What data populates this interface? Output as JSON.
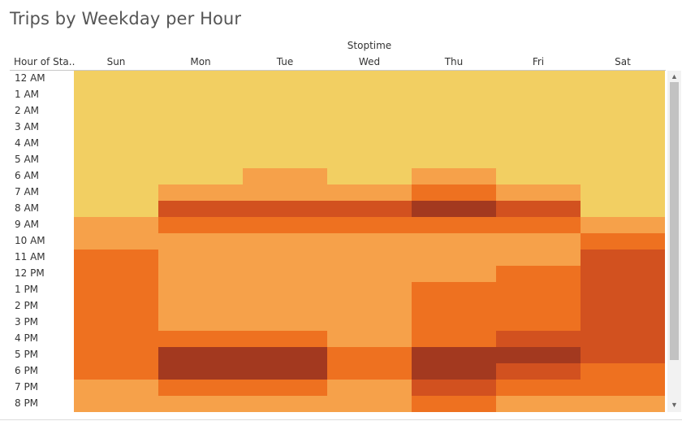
{
  "title": "Trips by Weekday per Hour",
  "column_group_label": "Stoptime",
  "row_header": "Hour of Sta..",
  "scroll_up_glyph": "▲",
  "scroll_down_glyph": "▼",
  "colors": [
    "#f2cf62",
    "#f6a14a",
    "#ee7120",
    "#d2511f",
    "#a3391f"
  ],
  "chart_data": {
    "type": "heatmap",
    "title": "Trips by Weekday per Hour",
    "xlabel": "Stoptime",
    "ylabel": "Hour of Sta..",
    "x": [
      "Sun",
      "Mon",
      "Tue",
      "Wed",
      "Thu",
      "Fri",
      "Sat"
    ],
    "y": [
      "12 AM",
      "1 AM",
      "2 AM",
      "3 AM",
      "4 AM",
      "5 AM",
      "6 AM",
      "7 AM",
      "8 AM",
      "9 AM",
      "10 AM",
      "11 AM",
      "12 PM",
      "1 PM",
      "2 PM",
      "3 PM",
      "4 PM",
      "5 PM",
      "6 PM",
      "7 PM",
      "8 PM"
    ],
    "values": [
      [
        0,
        0,
        0,
        0,
        0,
        0,
        0
      ],
      [
        0,
        0,
        0,
        0,
        0,
        0,
        0
      ],
      [
        0,
        0,
        0,
        0,
        0,
        0,
        0
      ],
      [
        0,
        0,
        0,
        0,
        0,
        0,
        0
      ],
      [
        0,
        0,
        0,
        0,
        0,
        0,
        0
      ],
      [
        0,
        0,
        0,
        0,
        0,
        0,
        0
      ],
      [
        0,
        0,
        1,
        0,
        1,
        0,
        0
      ],
      [
        0,
        1,
        1,
        1,
        2,
        1,
        0
      ],
      [
        0,
        3,
        3,
        3,
        4,
        3,
        0
      ],
      [
        1,
        2,
        2,
        2,
        2,
        2,
        1
      ],
      [
        1,
        1,
        1,
        1,
        1,
        1,
        2
      ],
      [
        2,
        1,
        1,
        1,
        1,
        1,
        3
      ],
      [
        2,
        1,
        1,
        1,
        1,
        2,
        3
      ],
      [
        2,
        1,
        1,
        1,
        2,
        2,
        3
      ],
      [
        2,
        1,
        1,
        1,
        2,
        2,
        3
      ],
      [
        2,
        1,
        1,
        1,
        2,
        2,
        3
      ],
      [
        2,
        2,
        2,
        1,
        2,
        3,
        3
      ],
      [
        2,
        4,
        4,
        2,
        4,
        4,
        3
      ],
      [
        2,
        4,
        4,
        2,
        4,
        3,
        2
      ],
      [
        1,
        2,
        2,
        1,
        3,
        2,
        2
      ],
      [
        1,
        1,
        1,
        1,
        2,
        1,
        1
      ]
    ],
    "color_scale": "sequential yellow-orange-brown (relative trip count, 0 = lowest, 4 = highest)"
  }
}
